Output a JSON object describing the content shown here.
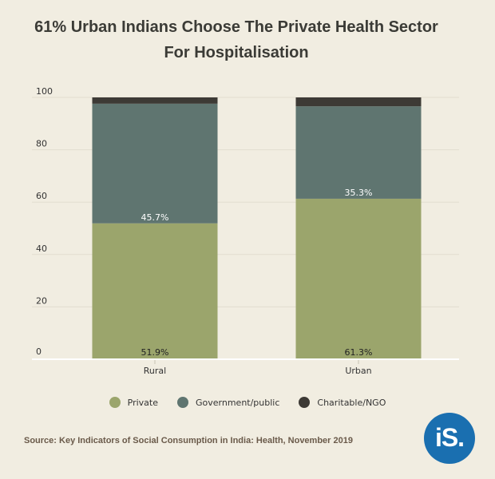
{
  "title": {
    "line1": "61% Urban Indians Choose The Private Health Sector",
    "line2": "For Hospitalisation"
  },
  "chart_data": {
    "type": "bar",
    "stacked": true,
    "title": "61% Urban Indians Choose The Private Health Sector For Hospitalisation",
    "categories": [
      "Rural",
      "Urban"
    ],
    "series": [
      {
        "name": "Private",
        "values": [
          51.9,
          61.3
        ],
        "labels": [
          "51.9%",
          "61.3%"
        ],
        "color": "#9ba56c"
      },
      {
        "name": "Government/public",
        "values": [
          45.7,
          35.3
        ],
        "labels": [
          "45.7%",
          "35.3%"
        ],
        "color": "#5f7570"
      },
      {
        "name": "Charitable/NGO",
        "values": [
          2.4,
          3.4
        ],
        "color": "#3d3a35"
      }
    ],
    "ylim": [
      0,
      100
    ],
    "yticks": [
      0,
      20,
      40,
      60,
      80,
      100
    ],
    "grid": true,
    "legend_position": "bottom"
  },
  "source": "Source: Key Indicators of Social Consumption in India: Health, November 2019",
  "logo_text": "iS.",
  "colors": {
    "background": "#f1ede1",
    "logo": "#1a6fb0"
  }
}
